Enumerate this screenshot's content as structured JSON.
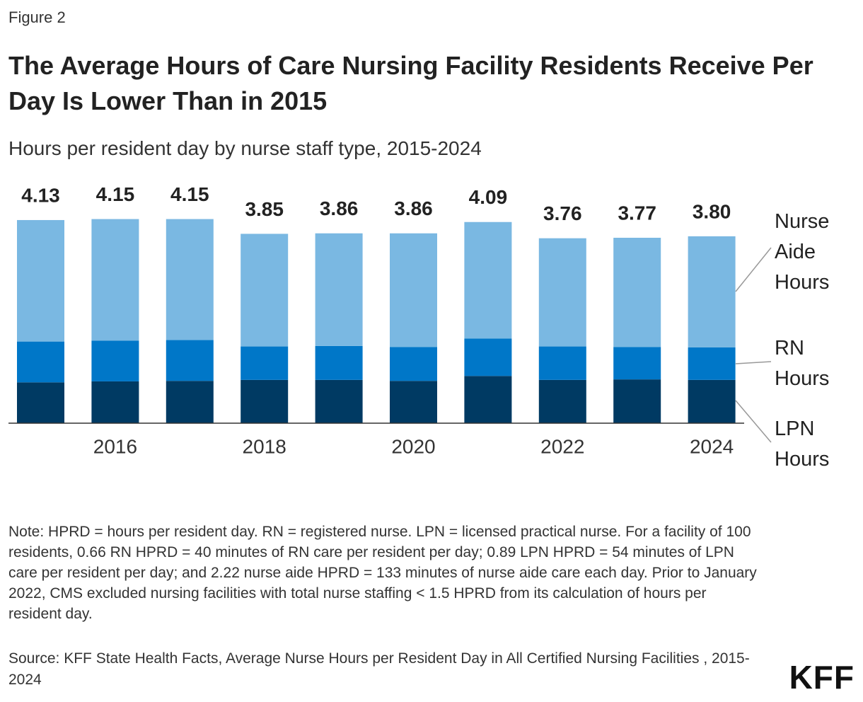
{
  "figure_label": "Figure 2",
  "chart_data": {
    "type": "stacked-bar",
    "title": "The Average Hours of Care Nursing Facility Residents Receive Per Day Is Lower Than in 2015",
    "subtitle": "Hours per resident day by nurse staff type, 2015-2024",
    "categories": [
      null,
      "2016",
      null,
      "2018",
      null,
      "2020",
      null,
      "2022",
      null,
      "2024"
    ],
    "series": [
      {
        "name": "LPN Hours",
        "color": "#003a63",
        "values": [
          0.83,
          0.85,
          0.86,
          0.88,
          0.88,
          0.86,
          0.96,
          0.88,
          0.89,
          0.88
        ]
      },
      {
        "name": "RN Hours",
        "color": "#0077c8",
        "values": [
          0.83,
          0.83,
          0.83,
          0.68,
          0.69,
          0.69,
          0.76,
          0.68,
          0.66,
          0.66
        ]
      },
      {
        "name": "Nurse Aide Hours",
        "color": "#7ab8e2",
        "values": [
          2.47,
          2.47,
          2.46,
          2.29,
          2.29,
          2.31,
          2.37,
          2.2,
          2.22,
          2.26
        ]
      }
    ],
    "totals": [
      4.13,
      4.15,
      4.15,
      3.85,
      3.86,
      3.86,
      4.09,
      3.76,
      3.77,
      3.8
    ],
    "total_labels": [
      "4.13",
      "4.15",
      "4.15",
      "3.85",
      "3.86",
      "3.86",
      "4.09",
      "3.76",
      "3.77",
      "3.80"
    ]
  },
  "note": "Note: HPRD = hours per resident day. RN = registered nurse. LPN = licensed practical nurse. For a facility of 100 residents, 0.66 RN HPRD = 40 minutes of RN care per resident per day; 0.89 LPN HPRD = 54 minutes of LPN care per resident per day; and 2.22 nurse aide HPRD = 133 minutes of nurse aide care each day. Prior to January 2022, CMS excluded nursing facilities with total nurse staffing < 1.5 HPRD from its calculation of hours per resident day.",
  "source": "Source: KFF State Health Facts, Average Nurse Hours per Resident Day in All Certified Nursing Facilities , 2015-2024",
  "logo": "KFF"
}
